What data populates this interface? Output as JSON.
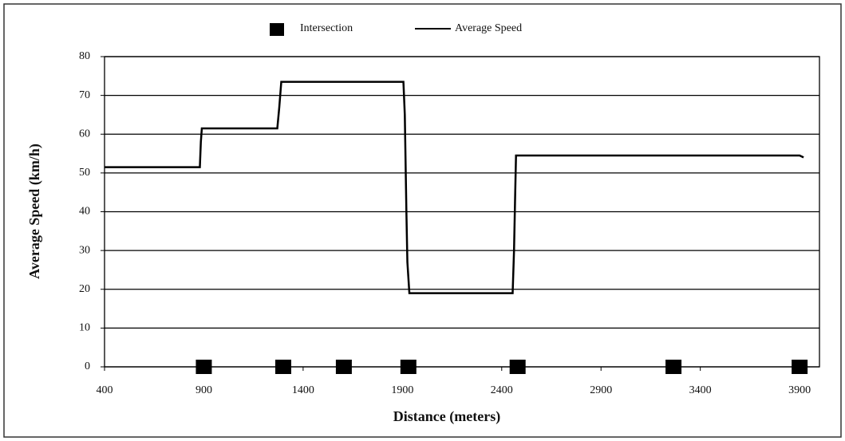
{
  "chart_data": {
    "type": "line",
    "x_label": "Distance (meters)",
    "y_label": "Average Speed (km/h)",
    "xlim": [
      400,
      4000
    ],
    "xticks": [
      400,
      900,
      1400,
      1900,
      2400,
      2900,
      3400,
      3900
    ],
    "ylim": [
      0,
      80
    ],
    "yticks": [
      0,
      10,
      20,
      30,
      40,
      50,
      60,
      70,
      80
    ],
    "grid": true,
    "legend": "top",
    "series": [
      {
        "name": "Intersection",
        "style": "marker",
        "color": "#000000",
        "x": [
          900,
          1300,
          1605,
          1930,
          2480,
          3265,
          3900
        ],
        "values": [
          0,
          0,
          0,
          0,
          0,
          0,
          0
        ]
      },
      {
        "name": "Average Speed",
        "style": "line",
        "color": "#000000",
        "x": [
          400,
          880,
          885,
          890,
          1270,
          1280,
          1290,
          1905,
          1912,
          1920,
          1925,
          1935,
          2455,
          2462,
          2468,
          2472,
          3900,
          3920
        ],
        "values": [
          51.5,
          51.5,
          58,
          61.5,
          61.5,
          67,
          73.5,
          73.5,
          65,
          40,
          27,
          19,
          19,
          30,
          45,
          54.5,
          54.5,
          54
        ]
      }
    ]
  }
}
